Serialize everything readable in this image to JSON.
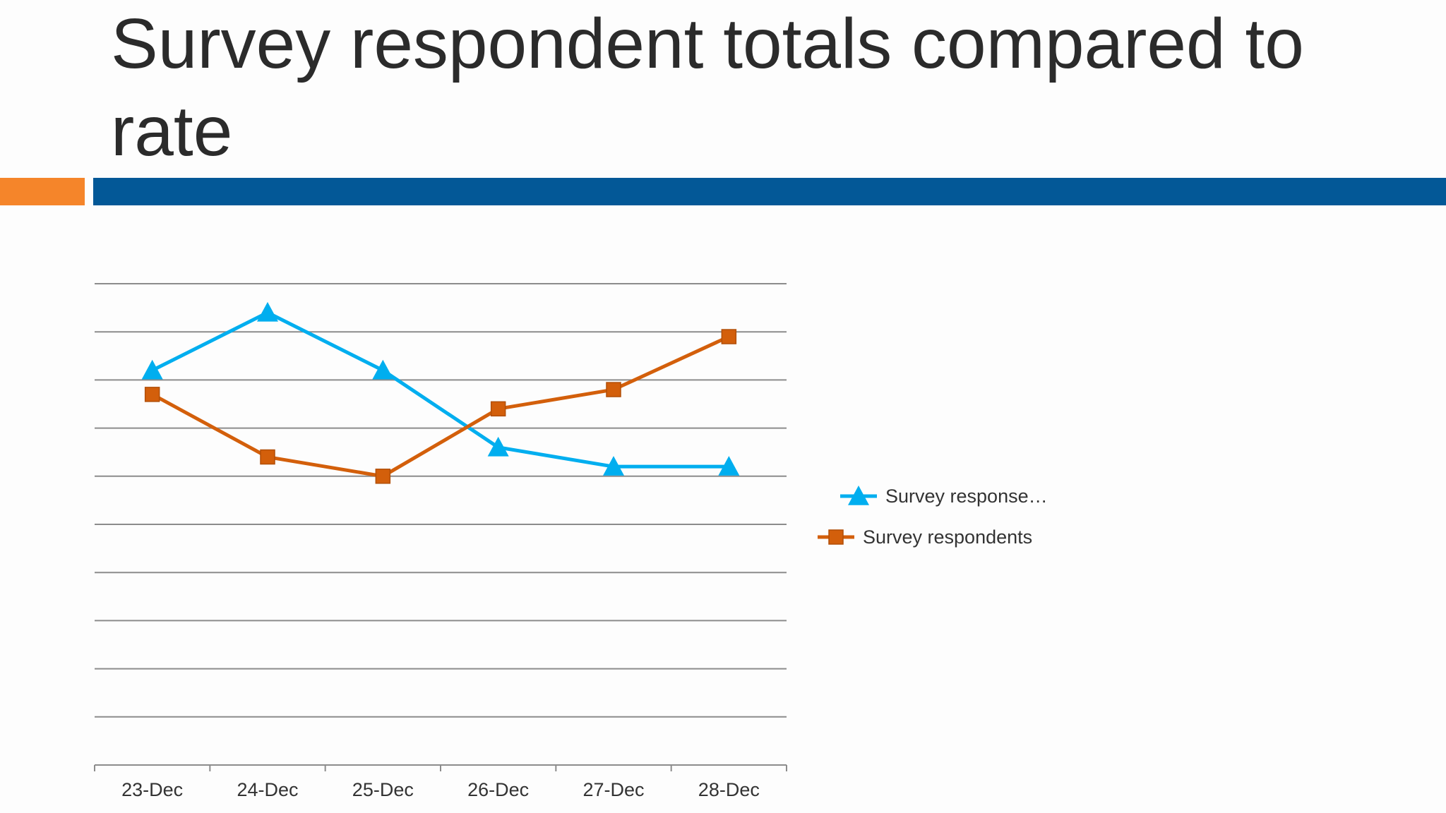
{
  "slide": {
    "title": "Survey respondent totals compared to rate"
  },
  "colors": {
    "accent_orange": "#f5852a",
    "accent_blue": "#035897",
    "series_blue": "#00aeef",
    "series_orange": "#d35f0b",
    "gridline": "#8c8c8c"
  },
  "chart_data": {
    "type": "line",
    "title": "",
    "xlabel": "",
    "ylabel": "",
    "categories": [
      "23-Dec",
      "24-Dec",
      "25-Dec",
      "26-Dec",
      "27-Dec",
      "28-Dec"
    ],
    "ylim": [
      0,
      10
    ],
    "grid": true,
    "gridline_count": 10,
    "y_axis_labels_shown": false,
    "legend_position": "right",
    "series": [
      {
        "name": "Survey response…",
        "marker": "triangle",
        "color": "#00aeef",
        "values": [
          8.2,
          9.4,
          8.2,
          6.6,
          6.2,
          6.2
        ]
      },
      {
        "name": "Survey respondents",
        "marker": "square",
        "color": "#d35f0b",
        "values": [
          7.7,
          6.4,
          6.0,
          7.4,
          7.8,
          8.9
        ]
      }
    ]
  }
}
